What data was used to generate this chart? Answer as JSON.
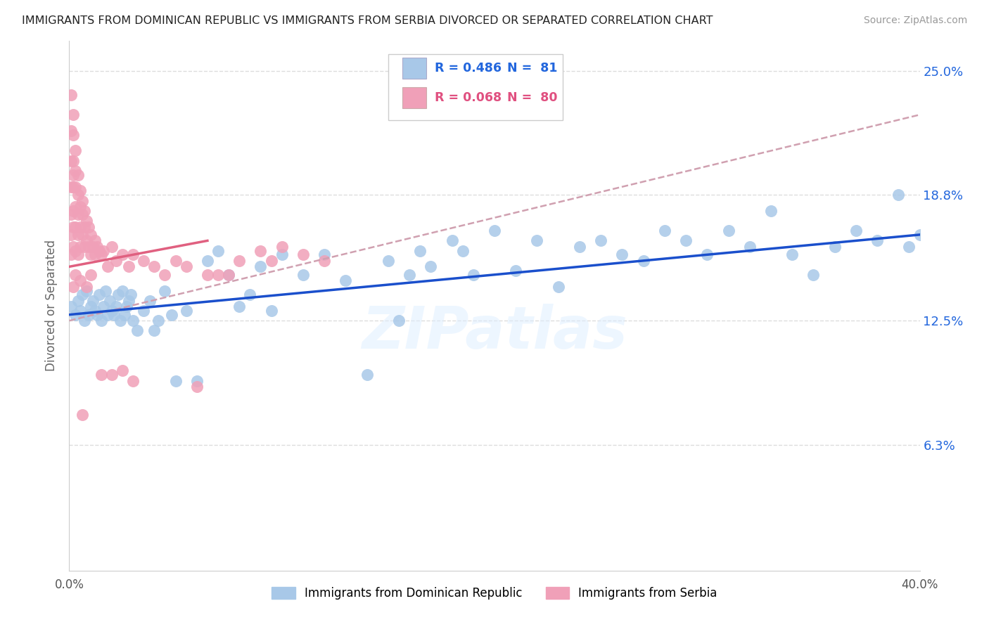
{
  "title": "IMMIGRANTS FROM DOMINICAN REPUBLIC VS IMMIGRANTS FROM SERBIA DIVORCED OR SEPARATED CORRELATION CHART",
  "source": "Source: ZipAtlas.com",
  "ylabel": "Divorced or Separated",
  "yticks": [
    "6.3%",
    "12.5%",
    "18.8%",
    "25.0%"
  ],
  "ytick_vals": [
    0.063,
    0.125,
    0.188,
    0.25
  ],
  "xmin": 0.0,
  "xmax": 0.4,
  "ymin": 0.0,
  "ymax": 0.265,
  "blue_color": "#a8c8e8",
  "pink_color": "#f0a0b8",
  "blue_line_color": "#1a4fcc",
  "pink_line_color": "#e06080",
  "dash_line_color": "#d0a0b0",
  "watermark": "ZIPatlas",
  "blue_scatter_x": [
    0.001,
    0.003,
    0.004,
    0.005,
    0.006,
    0.007,
    0.008,
    0.009,
    0.01,
    0.011,
    0.012,
    0.013,
    0.014,
    0.015,
    0.016,
    0.017,
    0.018,
    0.019,
    0.02,
    0.021,
    0.022,
    0.023,
    0.024,
    0.025,
    0.026,
    0.027,
    0.028,
    0.029,
    0.03,
    0.032,
    0.035,
    0.038,
    0.04,
    0.042,
    0.045,
    0.048,
    0.05,
    0.055,
    0.06,
    0.065,
    0.07,
    0.075,
    0.08,
    0.085,
    0.09,
    0.095,
    0.1,
    0.11,
    0.12,
    0.13,
    0.14,
    0.15,
    0.155,
    0.16,
    0.165,
    0.17,
    0.18,
    0.185,
    0.19,
    0.2,
    0.21,
    0.22,
    0.23,
    0.24,
    0.25,
    0.26,
    0.27,
    0.28,
    0.29,
    0.3,
    0.31,
    0.32,
    0.33,
    0.34,
    0.35,
    0.36,
    0.37,
    0.38,
    0.39,
    0.395,
    0.4
  ],
  "blue_scatter_y": [
    0.132,
    0.128,
    0.135,
    0.13,
    0.138,
    0.125,
    0.14,
    0.128,
    0.132,
    0.135,
    0.13,
    0.128,
    0.138,
    0.125,
    0.132,
    0.14,
    0.128,
    0.135,
    0.13,
    0.128,
    0.132,
    0.138,
    0.125,
    0.14,
    0.128,
    0.132,
    0.135,
    0.138,
    0.125,
    0.12,
    0.13,
    0.135,
    0.12,
    0.125,
    0.14,
    0.128,
    0.095,
    0.13,
    0.095,
    0.155,
    0.16,
    0.148,
    0.132,
    0.138,
    0.152,
    0.13,
    0.158,
    0.148,
    0.158,
    0.145,
    0.098,
    0.155,
    0.125,
    0.148,
    0.16,
    0.152,
    0.165,
    0.16,
    0.148,
    0.17,
    0.15,
    0.165,
    0.142,
    0.162,
    0.165,
    0.158,
    0.155,
    0.17,
    0.165,
    0.158,
    0.17,
    0.162,
    0.18,
    0.158,
    0.148,
    0.162,
    0.17,
    0.165,
    0.188,
    0.162,
    0.168
  ],
  "pink_scatter_x": [
    0.001,
    0.001,
    0.001,
    0.001,
    0.001,
    0.001,
    0.001,
    0.002,
    0.002,
    0.002,
    0.002,
    0.002,
    0.002,
    0.002,
    0.002,
    0.003,
    0.003,
    0.003,
    0.003,
    0.003,
    0.003,
    0.004,
    0.004,
    0.004,
    0.004,
    0.004,
    0.005,
    0.005,
    0.005,
    0.005,
    0.006,
    0.006,
    0.006,
    0.007,
    0.007,
    0.007,
    0.008,
    0.008,
    0.009,
    0.009,
    0.01,
    0.01,
    0.011,
    0.012,
    0.012,
    0.013,
    0.014,
    0.015,
    0.016,
    0.018,
    0.02,
    0.022,
    0.025,
    0.028,
    0.03,
    0.035,
    0.04,
    0.045,
    0.05,
    0.055,
    0.06,
    0.065,
    0.07,
    0.075,
    0.08,
    0.09,
    0.095,
    0.1,
    0.11,
    0.12,
    0.02,
    0.008,
    0.03,
    0.005,
    0.015,
    0.025,
    0.01,
    0.006,
    0.003,
    0.002
  ],
  "pink_scatter_y": [
    0.238,
    0.22,
    0.205,
    0.192,
    0.178,
    0.168,
    0.158,
    0.228,
    0.218,
    0.205,
    0.198,
    0.192,
    0.18,
    0.172,
    0.162,
    0.21,
    0.2,
    0.192,
    0.182,
    0.172,
    0.16,
    0.198,
    0.188,
    0.178,
    0.168,
    0.158,
    0.19,
    0.182,
    0.172,
    0.162,
    0.185,
    0.178,
    0.168,
    0.18,
    0.172,
    0.162,
    0.175,
    0.165,
    0.172,
    0.162,
    0.168,
    0.158,
    0.162,
    0.165,
    0.158,
    0.162,
    0.16,
    0.158,
    0.16,
    0.152,
    0.162,
    0.155,
    0.158,
    0.152,
    0.158,
    0.155,
    0.152,
    0.148,
    0.155,
    0.152,
    0.092,
    0.148,
    0.148,
    0.148,
    0.155,
    0.16,
    0.155,
    0.162,
    0.158,
    0.155,
    0.098,
    0.142,
    0.095,
    0.145,
    0.098,
    0.1,
    0.148,
    0.078,
    0.148,
    0.142
  ],
  "blue_trend_x0": 0.0,
  "blue_trend_x1": 0.4,
  "blue_trend_y0": 0.128,
  "blue_trend_y1": 0.168,
  "pink_trend_x0": 0.0,
  "pink_trend_x1": 0.065,
  "pink_trend_y0": 0.152,
  "pink_trend_y1": 0.165,
  "dash_trend_x0": 0.0,
  "dash_trend_x1": 0.4,
  "dash_trend_y0": 0.125,
  "dash_trend_y1": 0.228
}
